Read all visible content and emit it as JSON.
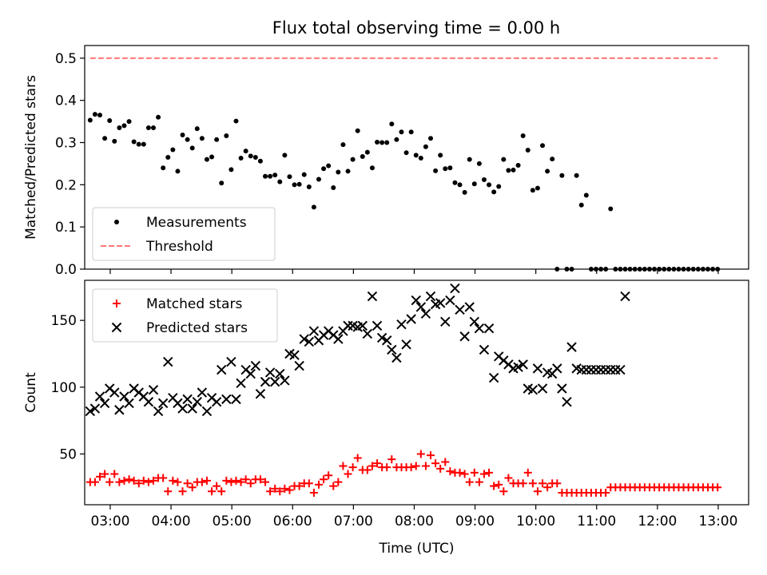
{
  "chart_data": [
    {
      "type": "scatter",
      "title": "Flux total observing time = 0.00 h",
      "ylabel": "Matched/Predicted stars",
      "xlabel": "",
      "xlim": [
        2.58,
        13.5
      ],
      "ylim": [
        0,
        0.53
      ],
      "yticks": [
        0,
        0.1,
        0.2,
        0.3,
        0.4,
        0.5
      ],
      "ytick_labels": [
        "0.0",
        "0.1",
        "0.2",
        "0.3",
        "0.4",
        "0.5"
      ],
      "xticks": [
        3,
        4,
        5,
        6,
        7,
        8,
        9,
        10,
        11,
        12,
        13
      ],
      "legend_position": "lower-left",
      "series": [
        {
          "name": "Measurements",
          "marker": "dot",
          "color": "#000000",
          "x": [
            2.67,
            2.75,
            2.83,
            2.91,
            2.99,
            3.07,
            3.15,
            3.23,
            3.31,
            3.39,
            3.47,
            3.55,
            3.63,
            3.71,
            3.79,
            3.87,
            3.95,
            4.03,
            4.11,
            4.19,
            4.27,
            4.35,
            4.43,
            4.51,
            4.59,
            4.67,
            4.75,
            4.83,
            4.91,
            4.99,
            5.07,
            5.15,
            5.23,
            5.31,
            5.39,
            5.47,
            5.55,
            5.63,
            5.71,
            5.79,
            5.87,
            5.95,
            6.03,
            6.11,
            6.19,
            6.27,
            6.35,
            6.43,
            6.51,
            6.59,
            6.67,
            6.75,
            6.83,
            6.91,
            6.99,
            7.07,
            7.15,
            7.23,
            7.31,
            7.39,
            7.47,
            7.55,
            7.63,
            7.71,
            7.79,
            7.87,
            7.95,
            8.03,
            8.11,
            8.19,
            8.27,
            8.35,
            8.43,
            8.51,
            8.59,
            8.67,
            8.75,
            8.83,
            8.91,
            8.99,
            9.07,
            9.15,
            9.23,
            9.31,
            9.39,
            9.47,
            9.55,
            9.63,
            9.71,
            9.79,
            9.87,
            9.95,
            10.03,
            10.11,
            10.19,
            10.27,
            10.35,
            10.43,
            10.51,
            10.59,
            10.67,
            10.75,
            10.83,
            10.91,
            10.99,
            11.07,
            11.15,
            11.23,
            11.31,
            11.39,
            11.47,
            11.55,
            11.63,
            11.71,
            11.79,
            11.87,
            11.95,
            12.03,
            12.11,
            12.19,
            12.27,
            12.35,
            12.43,
            12.51,
            12.59,
            12.67,
            12.75,
            12.83,
            12.91,
            12.99
          ],
          "y": [
            0.353,
            0.367,
            0.365,
            0.31,
            0.352,
            0.303,
            0.335,
            0.34,
            0.35,
            0.302,
            0.296,
            0.296,
            0.335,
            0.335,
            0.36,
            0.24,
            0.265,
            0.283,
            0.232,
            0.318,
            0.307,
            0.287,
            0.333,
            0.31,
            0.26,
            0.266,
            0.307,
            0.204,
            0.316,
            0.236,
            0.351,
            0.263,
            0.28,
            0.268,
            0.265,
            0.256,
            0.22,
            0.22,
            0.223,
            0.207,
            0.27,
            0.219,
            0.2,
            0.201,
            0.224,
            0.195,
            0.147,
            0.213,
            0.238,
            0.245,
            0.193,
            0.23,
            0.295,
            0.232,
            0.26,
            0.328,
            0.267,
            0.277,
            0.24,
            0.301,
            0.3,
            0.3,
            0.344,
            0.307,
            0.325,
            0.276,
            0.325,
            0.27,
            0.263,
            0.29,
            0.31,
            0.233,
            0.27,
            0.238,
            0.24,
            0.205,
            0.2,
            0.182,
            0.26,
            0.202,
            0.25,
            0.212,
            0.2,
            0.183,
            0.196,
            0.26,
            0.234,
            0.235,
            0.246,
            0.316,
            0.282,
            0.187,
            0.192,
            0.293,
            0.232,
            0.261,
            0.0,
            0.222,
            0.0,
            0.0,
            0.222,
            0.152,
            0.175,
            0.0,
            0.0,
            0.0,
            0.0,
            0.143,
            0.0,
            0.0,
            0.0,
            0.0,
            0.0,
            0.0,
            0.0,
            0.0,
            0.0,
            0.0,
            0.0,
            0.0,
            0.0,
            0.0,
            0.0,
            0.0,
            0.0,
            0.0,
            0.0,
            0.0,
            0.0,
            0.0
          ]
        },
        {
          "name": "Threshold",
          "style": "dashed-line",
          "color": "#ff7777",
          "x": [
            2.67,
            12.99
          ],
          "y": [
            0.5,
            0.5
          ]
        }
      ]
    },
    {
      "type": "scatter",
      "title": "",
      "ylabel": "Count",
      "xlabel": "Time (UTC)",
      "xlim": [
        2.58,
        13.5
      ],
      "ylim": [
        12,
        180
      ],
      "yticks": [
        50,
        100,
        150
      ],
      "ytick_labels": [
        "50",
        "100",
        "150"
      ],
      "xticks": [
        3,
        4,
        5,
        6,
        7,
        8,
        9,
        10,
        11,
        12,
        13
      ],
      "xtick_labels": [
        "03:00",
        "04:00",
        "05:00",
        "06:00",
        "07:00",
        "08:00",
        "09:00",
        "10:00",
        "11:00",
        "12:00",
        "13:00"
      ],
      "legend_position": "upper-left",
      "series": [
        {
          "name": "Matched stars",
          "marker": "plus",
          "color": "#ff0000",
          "x": [
            2.67,
            2.75,
            2.83,
            2.91,
            2.99,
            3.07,
            3.15,
            3.23,
            3.31,
            3.39,
            3.47,
            3.55,
            3.63,
            3.71,
            3.79,
            3.87,
            3.95,
            4.03,
            4.11,
            4.19,
            4.27,
            4.35,
            4.43,
            4.51,
            4.59,
            4.67,
            4.75,
            4.83,
            4.91,
            4.99,
            5.07,
            5.15,
            5.23,
            5.31,
            5.39,
            5.47,
            5.55,
            5.63,
            5.71,
            5.79,
            5.87,
            5.95,
            6.03,
            6.11,
            6.19,
            6.27,
            6.35,
            6.43,
            6.51,
            6.59,
            6.67,
            6.75,
            6.83,
            6.91,
            6.99,
            7.07,
            7.15,
            7.23,
            7.31,
            7.39,
            7.47,
            7.55,
            7.63,
            7.71,
            7.79,
            7.87,
            7.95,
            8.03,
            8.11,
            8.19,
            8.27,
            8.35,
            8.43,
            8.51,
            8.59,
            8.67,
            8.75,
            8.83,
            8.91,
            8.99,
            9.07,
            9.15,
            9.23,
            9.31,
            9.39,
            9.47,
            9.55,
            9.63,
            9.71,
            9.79,
            9.87,
            9.95,
            10.03,
            10.11,
            10.19,
            10.27,
            10.35,
            10.43,
            10.51,
            10.59,
            10.67,
            10.75,
            10.83,
            10.91,
            10.99,
            11.07,
            11.15,
            11.23,
            11.31,
            11.39,
            11.47,
            11.55,
            11.63,
            11.71,
            11.79,
            11.87,
            11.95,
            12.03,
            12.11,
            12.19,
            12.27,
            12.35,
            12.43,
            12.51,
            12.59,
            12.67,
            12.75,
            12.83,
            12.91,
            12.99
          ],
          "y": [
            29,
            29,
            33,
            35,
            29,
            35,
            29,
            30,
            31,
            30,
            28,
            30,
            29,
            30,
            32,
            32,
            22,
            30,
            29,
            22,
            28,
            25,
            29,
            29,
            30,
            22,
            26,
            22,
            30,
            29,
            30,
            29,
            31,
            28,
            31,
            31,
            29,
            22,
            24,
            22,
            24,
            23,
            26,
            26,
            28,
            28,
            21,
            27,
            31,
            34,
            26,
            29,
            41,
            35,
            40,
            47,
            38,
            38,
            41,
            43,
            40,
            40,
            46,
            40,
            40,
            40,
            40,
            41,
            50,
            41,
            49,
            43,
            39,
            44,
            37,
            36,
            36,
            35,
            29,
            36,
            29,
            35,
            36,
            26,
            27,
            22,
            32,
            28,
            28,
            28,
            36,
            28,
            22,
            28,
            25,
            28,
            28,
            21,
            21,
            21,
            21,
            21,
            21,
            21,
            21,
            21,
            21,
            25,
            25,
            25,
            25,
            25,
            25,
            25,
            25,
            25,
            25,
            25,
            25,
            25,
            25,
            25,
            25,
            25,
            25,
            25,
            25,
            25,
            25,
            25
          ]
        },
        {
          "name": "Predicted stars",
          "marker": "x",
          "color": "#000000",
          "x": [
            2.67,
            2.75,
            2.83,
            2.91,
            2.99,
            3.07,
            3.15,
            3.23,
            3.31,
            3.39,
            3.47,
            3.55,
            3.63,
            3.71,
            3.79,
            3.87,
            3.95,
            4.03,
            4.11,
            4.19,
            4.27,
            4.35,
            4.43,
            4.51,
            4.59,
            4.67,
            4.75,
            4.83,
            4.91,
            4.99,
            5.07,
            5.15,
            5.23,
            5.31,
            5.39,
            5.47,
            5.55,
            5.63,
            5.71,
            5.79,
            5.87,
            5.95,
            6.03,
            6.11,
            6.19,
            6.27,
            6.35,
            6.43,
            6.51,
            6.59,
            6.67,
            6.75,
            6.83,
            6.91,
            6.99,
            7.07,
            7.15,
            7.23,
            7.31,
            7.39,
            7.47,
            7.55,
            7.63,
            7.71,
            7.79,
            7.87,
            7.95,
            8.03,
            8.11,
            8.19,
            8.27,
            8.35,
            8.43,
            8.51,
            8.59,
            8.67,
            8.75,
            8.83,
            8.91,
            8.99,
            9.07,
            9.15,
            9.23,
            9.31,
            9.39,
            9.47,
            9.55,
            9.63,
            9.71,
            9.79,
            9.87,
            9.95,
            10.03,
            10.11,
            10.19,
            10.27,
            10.35,
            10.43,
            10.51,
            10.59,
            10.67,
            10.75,
            10.83,
            10.91,
            10.99,
            11.07,
            11.15,
            11.23,
            11.31,
            11.39,
            11.47
          ],
          "y": [
            82,
            84,
            93,
            88,
            99,
            96,
            83,
            93,
            88,
            99,
            96,
            93,
            89,
            98,
            82,
            88,
            119,
            92,
            88,
            84,
            91,
            84,
            89,
            96,
            82,
            92,
            89,
            113,
            91,
            119,
            91,
            103,
            113,
            110,
            116,
            95,
            104,
            111,
            104,
            110,
            105,
            125,
            124,
            116,
            136,
            134,
            142,
            135,
            139,
            142,
            139,
            136,
            142,
            146,
            146,
            145,
            146,
            140,
            168,
            146,
            137,
            135,
            128,
            122,
            147,
            132,
            151,
            165,
            160,
            155,
            168,
            162,
            163,
            149,
            165,
            174,
            158,
            138,
            160,
            149,
            144,
            128,
            144,
            107,
            123,
            120,
            117,
            114,
            115,
            117,
            99,
            98,
            114,
            99,
            111,
            110,
            114,
            99,
            89,
            130,
            114,
            113,
            113,
            113,
            113,
            113,
            113,
            113,
            113,
            113,
            168
          ],
          "note": ""
        }
      ]
    }
  ]
}
